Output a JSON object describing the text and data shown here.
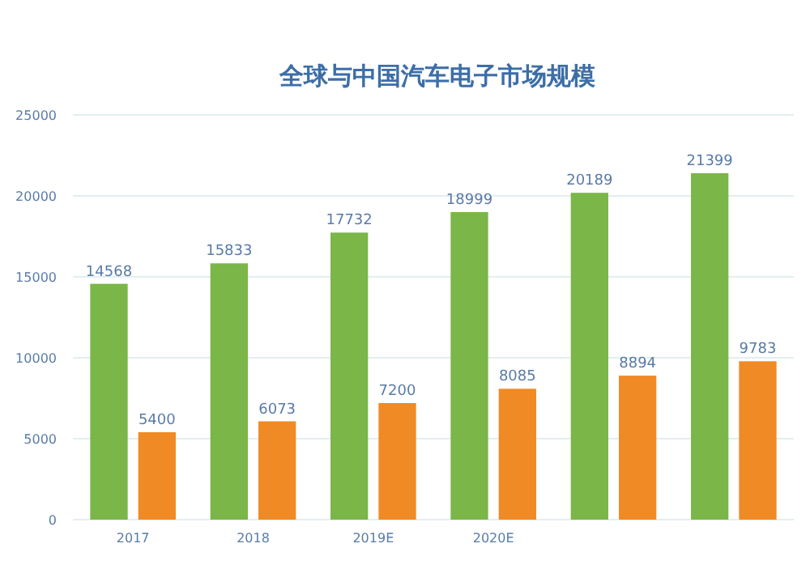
{
  "chart_data": {
    "type": "bar",
    "title": "全球与中国汽车电子市场规模",
    "categories": [
      "2017",
      "2018",
      "2019E",
      "2020E",
      null,
      null
    ],
    "series": [
      {
        "color": "#7ab648",
        "values": [
          14568,
          15833,
          17732,
          18999,
          20189,
          21399
        ]
      },
      {
        "color": "#f08a24",
        "values": [
          5400,
          6073,
          7200,
          8085,
          8894,
          9783
        ]
      }
    ],
    "ylim": [
      0,
      25000
    ],
    "yticks": [
      0,
      5000,
      10000,
      15000,
      20000,
      25000
    ],
    "grid": "y",
    "data_labels": true
  }
}
